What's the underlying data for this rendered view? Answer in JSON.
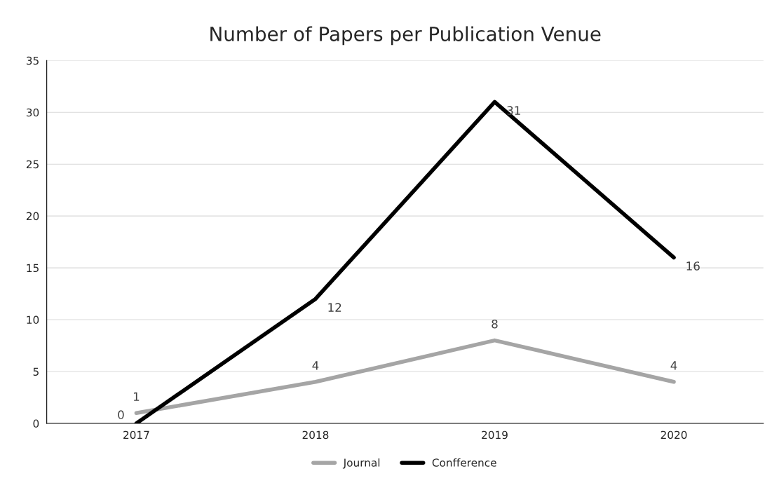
{
  "chart_data": {
    "type": "line",
    "title": "Number of Papers per Publication Venue",
    "categories": [
      "2017",
      "2018",
      "2019",
      "2020"
    ],
    "series": [
      {
        "name": "Journal",
        "color": "#a5a5a5",
        "values": [
          1,
          4,
          8,
          4
        ]
      },
      {
        "name": "Confference",
        "color": "#000000",
        "values": [
          0,
          12,
          31,
          16
        ]
      }
    ],
    "ylim": [
      0,
      35
    ],
    "yticks": [
      0,
      5,
      10,
      15,
      20,
      25,
      30,
      35
    ],
    "grid": "y",
    "legend": "bottom",
    "data_labels": true,
    "marker": "none",
    "line_style": "solid"
  }
}
